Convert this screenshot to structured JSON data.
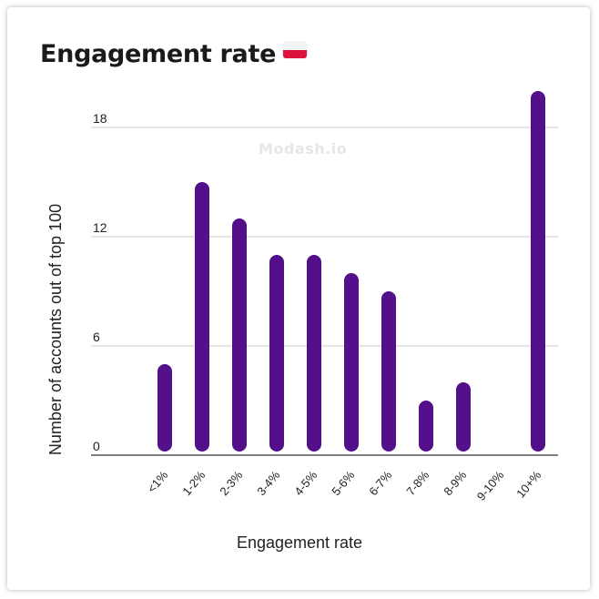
{
  "colors": {
    "bar": "#53108a",
    "grid": "#cccccc",
    "axis": "#555555",
    "text": "#222222"
  },
  "watermark": "Modash.io",
  "flag_icon": "flag-poland-icon",
  "chart_data": {
    "type": "bar",
    "title": "Engagement rate",
    "xlabel": "Engagement rate",
    "ylabel": "Number of accounts out of top 100",
    "categories": [
      "<1%",
      "1-2%",
      "2-3%",
      "3-4%",
      "4-5%",
      "5-6%",
      "6-7%",
      "7-8%",
      "8-9%",
      "9-10%",
      "10+%"
    ],
    "values": [
      5,
      15,
      13,
      11,
      11,
      10,
      9,
      3,
      4,
      0,
      20
    ],
    "yticks": [
      0,
      6,
      12,
      18
    ],
    "ylim": [
      0,
      20
    ],
    "grid": true,
    "legend": "none"
  }
}
